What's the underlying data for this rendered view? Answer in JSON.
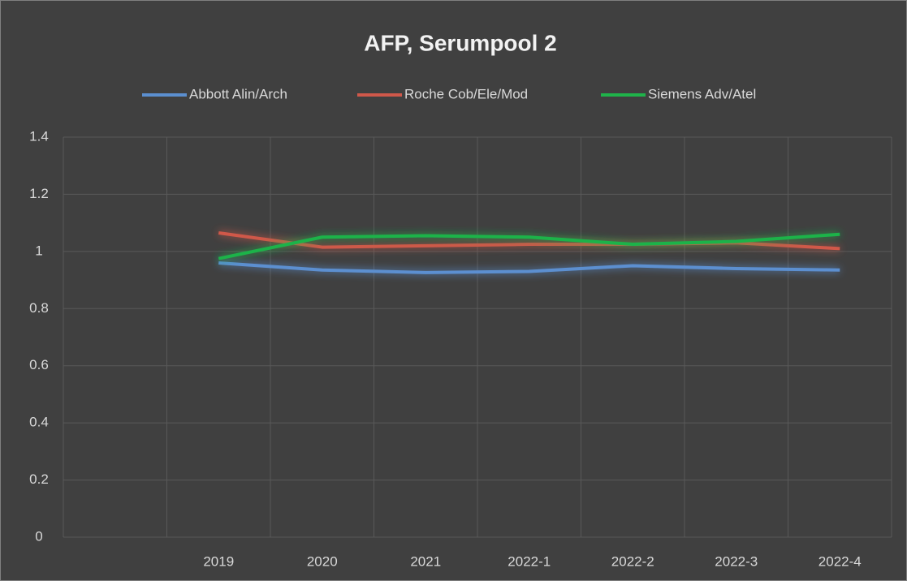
{
  "chart_data": {
    "type": "line",
    "title": "AFP, Serumpool  2",
    "categories": [
      null,
      "2019",
      "2020",
      "2021",
      "2022-1",
      "2022-2",
      "2022-3",
      "2022-4"
    ],
    "series": [
      {
        "name": "Abbott Alin/Arch",
        "color": "#5b8fd0",
        "values": [
          null,
          0.96,
          0.935,
          0.926,
          0.93,
          0.95,
          0.94,
          0.935
        ]
      },
      {
        "name": "Roche Cob/Ele/Mod",
        "color": "#d0584a",
        "values": [
          null,
          1.065,
          1.015,
          1.02,
          1.025,
          1.025,
          1.03,
          1.01
        ]
      },
      {
        "name": "Siemens Adv/Atel",
        "color": "#1fb34a",
        "values": [
          null,
          0.975,
          1.05,
          1.055,
          1.05,
          1.025,
          1.035,
          1.06
        ]
      }
    ],
    "ylim": [
      0,
      1.4
    ],
    "yticks": [
      0,
      0.2,
      0.4,
      0.6,
      0.8,
      1,
      1.2,
      1.4
    ],
    "grid": true,
    "legend": "top"
  }
}
